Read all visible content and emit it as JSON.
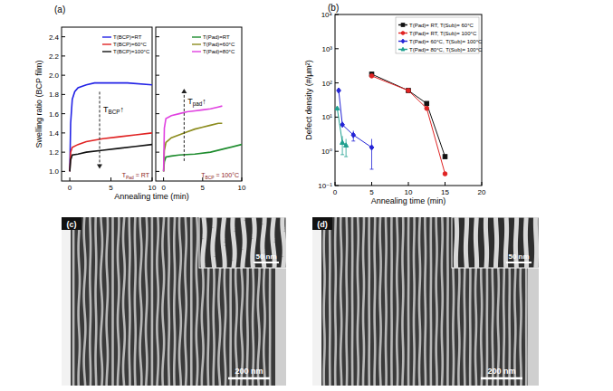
{
  "chart_data": [
    {
      "type": "line",
      "title": "(a)",
      "y_label": "Swelling ratio (BCP film)",
      "x_label": "Annealing time (min)",
      "xlim": [
        -1,
        10
      ],
      "xticks": [
        0,
        5,
        10
      ],
      "ylim": [
        0.9,
        2.5
      ],
      "yticks": [
        {
          "value": 1,
          "label": "1.0"
        },
        {
          "value": 1.2,
          "label": "1.2"
        },
        {
          "value": 1.4,
          "label": "1.4"
        },
        {
          "value": 1.6,
          "label": "1.6"
        },
        {
          "value": 1.8,
          "label": "1.8"
        },
        {
          "value": 2,
          "label": "2.0"
        },
        {
          "value": 2.2,
          "label": "2.2"
        },
        {
          "value": 2.4,
          "label": "2.4"
        }
      ],
      "grid": false,
      "legend": "upper right",
      "annotations": [
        {
          "text": "T",
          "sub": "BCP",
          "after": "↑"
        },
        {
          "text": "T",
          "sub": "Pad",
          "after": " = RT"
        }
      ],
      "series": [
        {
          "name": "T(BCP)=RT",
          "color": "#2323e6",
          "x": [
            0,
            0.1,
            0.3,
            0.6,
            1,
            2,
            3,
            5,
            7,
            10
          ],
          "values": [
            1.0,
            1.5,
            1.75,
            1.83,
            1.87,
            1.9,
            1.92,
            1.92,
            1.92,
            1.9
          ]
        },
        {
          "name": "T(BCP)=60°C",
          "color": "#e02323",
          "x": [
            0,
            0.1,
            0.3,
            1,
            2,
            4,
            6,
            8,
            10
          ],
          "values": [
            1.0,
            1.2,
            1.25,
            1.28,
            1.31,
            1.34,
            1.36,
            1.38,
            1.4
          ]
        },
        {
          "name": "T(BCP)=100°C",
          "color": "#111111",
          "x": [
            0,
            0.1,
            0.3,
            1,
            2,
            4,
            6,
            8,
            10
          ],
          "values": [
            1.0,
            1.12,
            1.17,
            1.18,
            1.2,
            1.22,
            1.24,
            1.26,
            1.28
          ]
        }
      ]
    },
    {
      "type": "line",
      "tick_labels": "x",
      "xlim": [
        -1,
        10
      ],
      "xticks": [
        0,
        5,
        10
      ],
      "ylim": [
        0.9,
        2.5
      ],
      "yticks": [
        {
          "value": 1,
          "label": "1.0"
        },
        {
          "value": 1.2,
          "label": "1.2"
        },
        {
          "value": 1.4,
          "label": "1.4"
        },
        {
          "value": 1.6,
          "label": "1.6"
        },
        {
          "value": 1.8,
          "label": "1.8"
        },
        {
          "value": 2,
          "label": "2.0"
        },
        {
          "value": 2.2,
          "label": "2.2"
        },
        {
          "value": 2.4,
          "label": "2.4"
        }
      ],
      "grid": false,
      "legend": "upper right",
      "annotations": [
        {
          "text": "T",
          "sub": "pad",
          "after": "↑"
        },
        {
          "text": "T",
          "sub": "BCP",
          "after": " = 100°C"
        }
      ],
      "series": [
        {
          "name": "T(Pad)=RT",
          "color": "#1e8c2e",
          "x": [
            0,
            0.1,
            0.3,
            1,
            2,
            4,
            6,
            8,
            10
          ],
          "values": [
            1.0,
            1.1,
            1.15,
            1.16,
            1.17,
            1.18,
            1.2,
            1.24,
            1.28
          ]
        },
        {
          "name": "T(Pad)=60°C",
          "color": "#8c8c1e",
          "x": [
            0,
            0.1,
            0.3,
            1,
            2,
            3,
            4,
            5,
            6,
            7,
            7.5
          ],
          "values": [
            1.0,
            1.22,
            1.3,
            1.35,
            1.38,
            1.41,
            1.44,
            1.46,
            1.48,
            1.5,
            1.5
          ]
        },
        {
          "name": "T(Pad)=80°C",
          "color": "#e040e0",
          "x": [
            0,
            0.1,
            0.3,
            1,
            2,
            3,
            4,
            5,
            6,
            7,
            7.5
          ],
          "values": [
            1.0,
            1.45,
            1.55,
            1.58,
            1.6,
            1.62,
            1.63,
            1.64,
            1.65,
            1.67,
            1.68
          ]
        }
      ]
    },
    {
      "type": "line",
      "title": "(b)",
      "y_label": "Defect density (#/μm²)",
      "x_label": "Annealing time (min)",
      "log": "y",
      "xlim": [
        0,
        20
      ],
      "xticks": [
        0,
        5,
        10,
        15,
        20
      ],
      "ylim": [
        0.1,
        10000
      ],
      "yticks": [
        {
          "value": 0.1,
          "label": "10⁻¹"
        },
        {
          "value": 1,
          "label": "10⁰"
        },
        {
          "value": 10,
          "label": "10¹"
        },
        {
          "value": 100,
          "label": "10²"
        },
        {
          "value": 1000,
          "label": "10³"
        },
        {
          "value": 10000,
          "label": "10⁴"
        }
      ],
      "grid": false,
      "legend": "upper right",
      "series": [
        {
          "name": "T(Pad)= RT, T(Sub)= 60°C",
          "color": "#111111",
          "marker": "square",
          "x": [
            5,
            10,
            12.5,
            15
          ],
          "values": [
            180,
            60,
            25,
            0.7
          ]
        },
        {
          "name": "T(Pad)= RT, T(Sub)= 100°C",
          "color": "#e02323",
          "marker": "circle",
          "x": [
            5,
            10,
            12.5,
            15
          ],
          "values": [
            160,
            60,
            18,
            0.22
          ]
        },
        {
          "name": "T(Pad)= 60°C, T(Sub)= 100°C",
          "color": "#2323d6",
          "marker": "diamond",
          "x": [
            0.5,
            1,
            2.5,
            5
          ],
          "values": [
            60,
            6,
            3,
            1.3
          ],
          "errors": [
            0,
            0,
            1,
            1
          ]
        },
        {
          "name": "T(Pad)= 80°C, T(Sub)= 100°C",
          "color": "#1f9f8f",
          "marker": "triangle",
          "x": [
            0.3,
            1,
            1.5
          ],
          "values": [
            18,
            1.8,
            1.5
          ],
          "errors": [
            0,
            1,
            0.8
          ]
        }
      ]
    }
  ],
  "images": [
    {
      "label": "(c)",
      "scale_bar": "200 nm",
      "inset_scale_bar": "50 nm"
    },
    {
      "label": "(d)",
      "scale_bar": "200 nm",
      "inset_scale_bar": "50 nm"
    }
  ]
}
